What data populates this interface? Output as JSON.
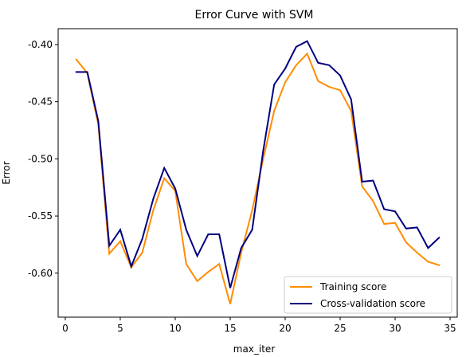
{
  "chart_data": {
    "type": "line",
    "title": "Error Curve with SVM",
    "xlabel": "max_iter",
    "ylabel": "Error",
    "xlim": [
      -0.65,
      35.65
    ],
    "ylim": [
      -0.6385,
      -0.3861
    ],
    "xticks": [
      0,
      5,
      10,
      15,
      20,
      25,
      30,
      35
    ],
    "yticks": [
      -0.6,
      -0.55,
      -0.5,
      -0.45,
      -0.4
    ],
    "ytick_labels": [
      "-0.60",
      "-0.55",
      "-0.50",
      "-0.45",
      "-0.40"
    ],
    "grid": false,
    "legend_position": "lower-right",
    "x": [
      1,
      2,
      3,
      4,
      5,
      6,
      7,
      8,
      9,
      10,
      11,
      12,
      13,
      14,
      15,
      16,
      17,
      18,
      19,
      20,
      21,
      22,
      23,
      24,
      25,
      26,
      27,
      28,
      29,
      30,
      31,
      32,
      33,
      34
    ],
    "series": [
      {
        "name": "Training score",
        "color": "#ff8c00",
        "values": [
          -0.413,
          -0.425,
          -0.47,
          -0.583,
          -0.572,
          -0.595,
          -0.582,
          -0.545,
          -0.517,
          -0.528,
          -0.592,
          -0.607,
          -0.599,
          -0.592,
          -0.627,
          -0.582,
          -0.545,
          -0.5,
          -0.458,
          -0.433,
          -0.418,
          -0.408,
          -0.432,
          -0.437,
          -0.44,
          -0.458,
          -0.524,
          -0.537,
          -0.557,
          -0.556,
          -0.573,
          -0.582,
          -0.59,
          -0.593
        ]
      },
      {
        "name": "Cross-validation score",
        "color": "#000080",
        "values": [
          -0.424,
          -0.424,
          -0.467,
          -0.576,
          -0.562,
          -0.594,
          -0.57,
          -0.535,
          -0.508,
          -0.526,
          -0.562,
          -0.585,
          -0.566,
          -0.566,
          -0.613,
          -0.578,
          -0.562,
          -0.493,
          -0.435,
          -0.421,
          -0.402,
          -0.397,
          -0.416,
          -0.418,
          -0.427,
          -0.448,
          -0.52,
          -0.519,
          -0.544,
          -0.546,
          -0.561,
          -0.56,
          -0.578,
          -0.569
        ]
      }
    ]
  }
}
